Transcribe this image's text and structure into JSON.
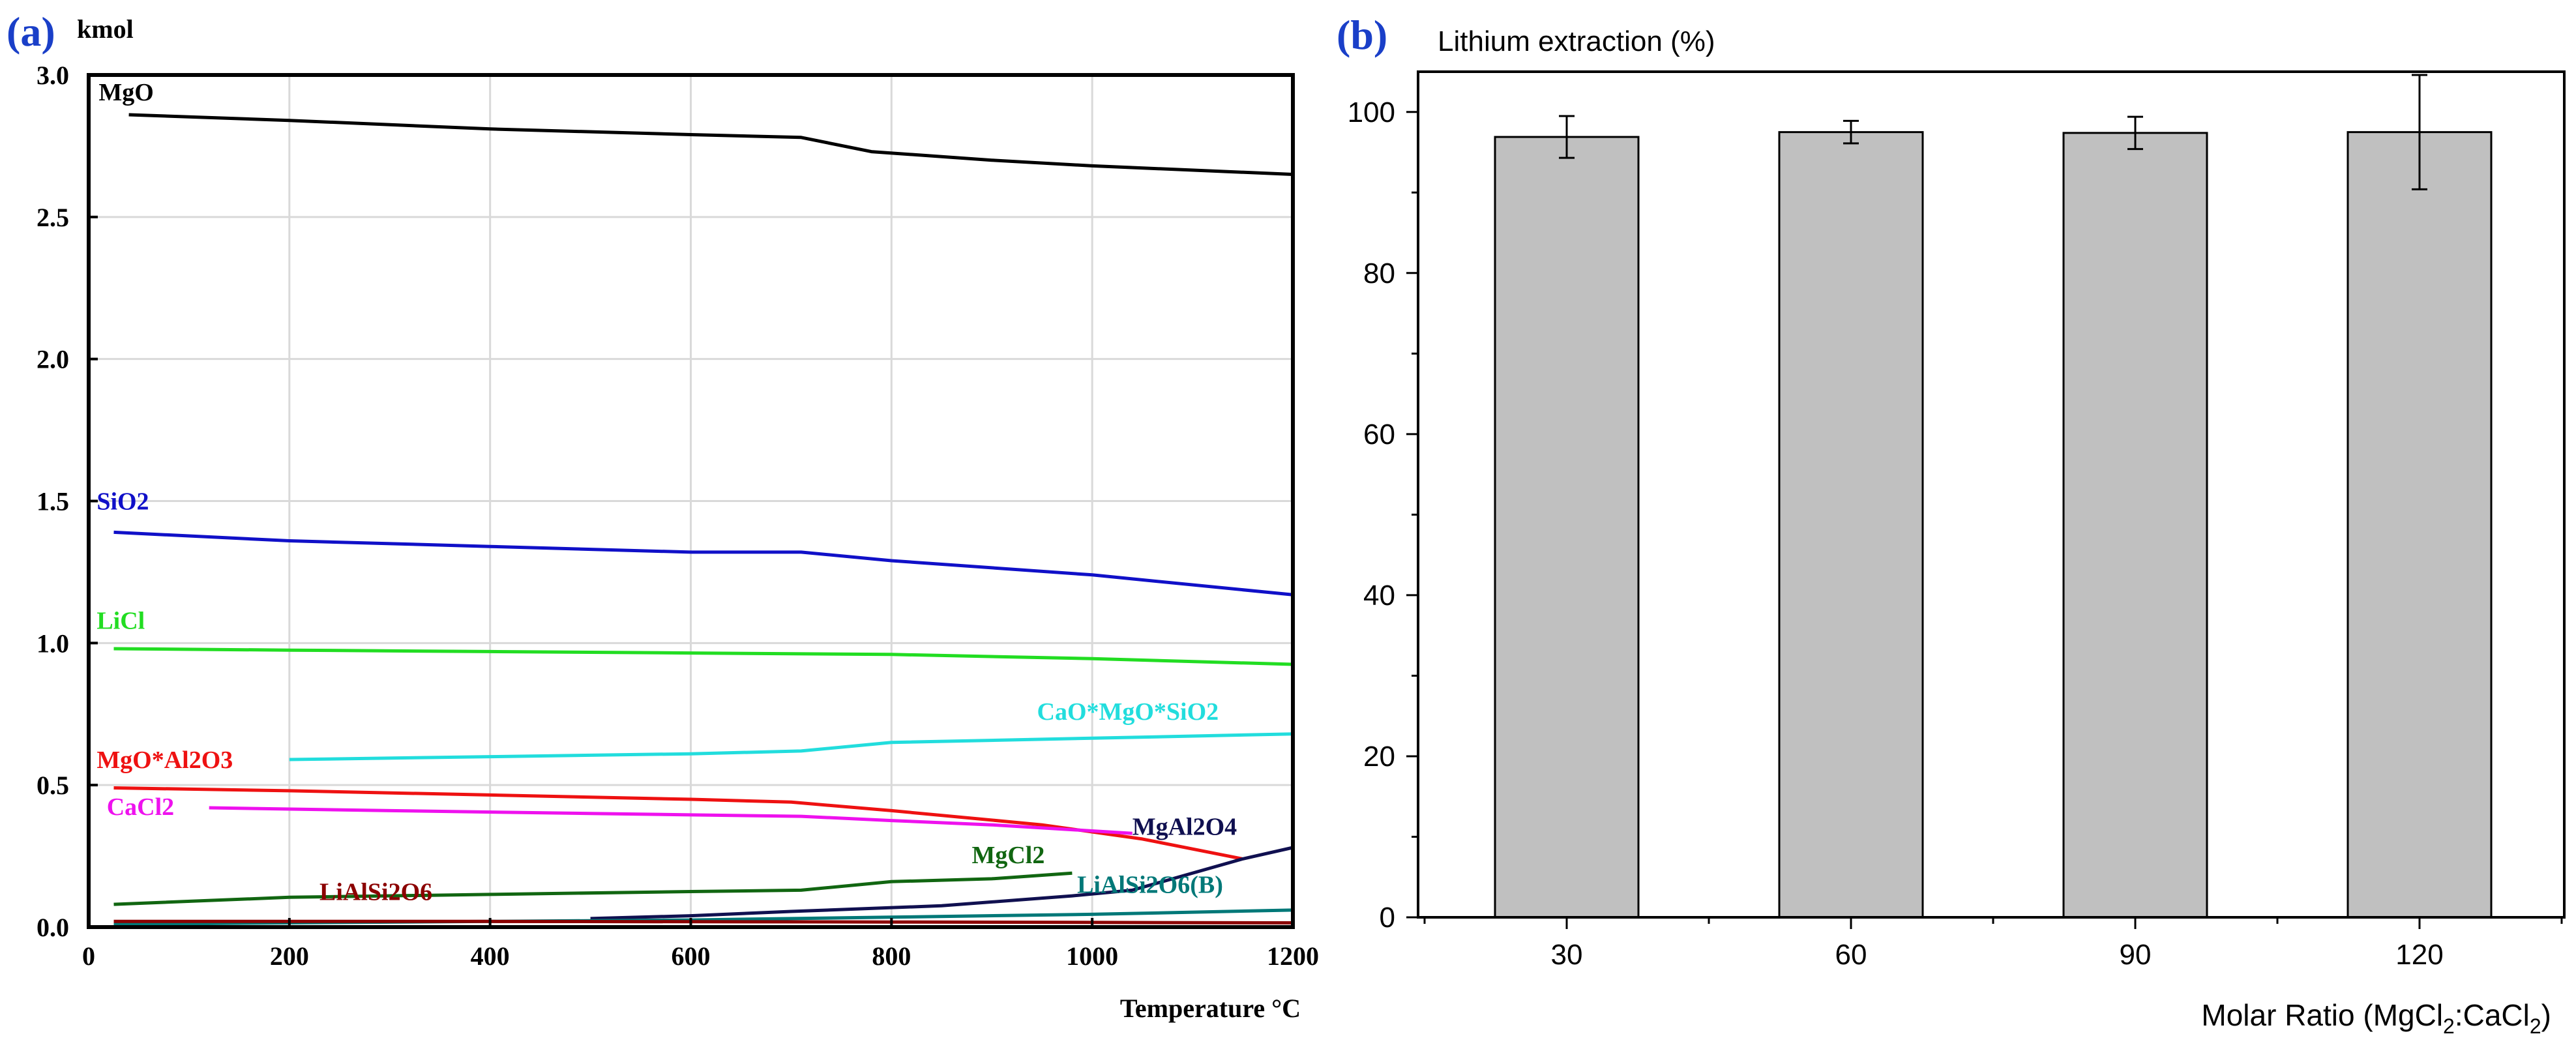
{
  "chart_data": [
    {
      "type": "line",
      "panel_label": "(a)",
      "ylabel": "kmol",
      "xlabel": "Temperature °C",
      "xlim": [
        0,
        1200
      ],
      "ylim": [
        0,
        3.0
      ],
      "x_ticks": [
        0,
        200,
        400,
        600,
        800,
        1000,
        1200
      ],
      "y_ticks": [
        0.0,
        0.5,
        1.0,
        1.5,
        2.0,
        2.5,
        3.0
      ],
      "x_tick_labels": [
        "0",
        "200",
        "400",
        "600",
        "800",
        "1000",
        "1200"
      ],
      "y_tick_labels": [
        "0.0",
        "0.5",
        "1.0",
        "1.5",
        "2.0",
        "2.5",
        "3.0"
      ],
      "grid": true,
      "series": [
        {
          "name": "MgO",
          "color": "#000000",
          "label_x": 10,
          "label_y": 2.91,
          "points": [
            [
              40,
              2.86
            ],
            [
              200,
              2.84
            ],
            [
              400,
              2.81
            ],
            [
              600,
              2.79
            ],
            [
              710,
              2.78
            ],
            [
              780,
              2.73
            ],
            [
              900,
              2.7
            ],
            [
              1000,
              2.68
            ],
            [
              1200,
              2.65
            ]
          ]
        },
        {
          "name": "SiO2",
          "color": "#1010c8",
          "label_x": 8,
          "label_y": 1.47,
          "points": [
            [
              25,
              1.39
            ],
            [
              200,
              1.36
            ],
            [
              400,
              1.34
            ],
            [
              600,
              1.32
            ],
            [
              710,
              1.32
            ],
            [
              800,
              1.29
            ],
            [
              1000,
              1.24
            ],
            [
              1200,
              1.17
            ]
          ]
        },
        {
          "name": "LiCl",
          "color": "#22dd22",
          "label_x": 8,
          "label_y": 1.05,
          "points": [
            [
              25,
              0.98
            ],
            [
              200,
              0.975
            ],
            [
              400,
              0.97
            ],
            [
              600,
              0.965
            ],
            [
              800,
              0.96
            ],
            [
              1000,
              0.945
            ],
            [
              1200,
              0.925
            ]
          ]
        },
        {
          "name": "CaO*MgO*SiO2",
          "color": "#22dddd",
          "label_x": 945,
          "label_y": 0.73,
          "points": [
            [
              200,
              0.59
            ],
            [
              400,
              0.6
            ],
            [
              600,
              0.61
            ],
            [
              710,
              0.62
            ],
            [
              800,
              0.65
            ],
            [
              1000,
              0.665
            ],
            [
              1200,
              0.68
            ]
          ]
        },
        {
          "name": "MgO*Al2O3",
          "color": "#ee1111",
          "label_x": 8,
          "label_y": 0.56,
          "points": [
            [
              25,
              0.49
            ],
            [
              200,
              0.48
            ],
            [
              400,
              0.465
            ],
            [
              600,
              0.45
            ],
            [
              700,
              0.44
            ],
            [
              800,
              0.41
            ],
            [
              950,
              0.36
            ],
            [
              1050,
              0.31
            ],
            [
              1150,
              0.24
            ]
          ]
        },
        {
          "name": "CaCl2",
          "color": "#ee11ee",
          "label_x": 18,
          "label_y": 0.395,
          "points": [
            [
              120,
              0.42
            ],
            [
              300,
              0.41
            ],
            [
              500,
              0.4
            ],
            [
              600,
              0.395
            ],
            [
              710,
              0.39
            ],
            [
              800,
              0.375
            ],
            [
              900,
              0.36
            ],
            [
              1040,
              0.33
            ]
          ]
        },
        {
          "name": "MgCl2",
          "color": "#116611",
          "label_x": 880,
          "label_y": 0.225,
          "points": [
            [
              25,
              0.08
            ],
            [
              200,
              0.105
            ],
            [
              400,
              0.115
            ],
            [
              600,
              0.125
            ],
            [
              710,
              0.13
            ],
            [
              800,
              0.16
            ],
            [
              900,
              0.17
            ],
            [
              980,
              0.19
            ]
          ]
        },
        {
          "name": "MgAl2O4",
          "color": "#101050",
          "label_x": 1040,
          "label_y": 0.325,
          "points": [
            [
              500,
              0.03
            ],
            [
              600,
              0.04
            ],
            [
              700,
              0.055
            ],
            [
              850,
              0.075
            ],
            [
              980,
              0.11
            ],
            [
              1040,
              0.13
            ],
            [
              1150,
              0.24
            ],
            [
              1200,
              0.28
            ]
          ]
        },
        {
          "name": "LiAlSi2O6(B)",
          "color": "#007878",
          "label_x": 985,
          "label_y": 0.12,
          "points": [
            [
              25,
              0.01
            ],
            [
              200,
              0.015
            ],
            [
              400,
              0.02
            ],
            [
              600,
              0.025
            ],
            [
              800,
              0.035
            ],
            [
              1000,
              0.045
            ],
            [
              1200,
              0.06
            ]
          ]
        },
        {
          "name": "LiAlSi2O6",
          "color": "#8b0000",
          "label_x": 230,
          "label_y": 0.095,
          "points": [
            [
              25,
              0.02
            ],
            [
              400,
              0.02
            ],
            [
              800,
              0.018
            ],
            [
              1200,
              0.015
            ]
          ]
        }
      ]
    },
    {
      "type": "bar",
      "panel_label": "(b)",
      "title": "Lithium extraction (%)",
      "xlabel": "Molar Ratio (MgCl",
      "xlabel_sub1": "2",
      "xlabel_mid": ":CaCl",
      "xlabel_sub2": "2",
      "xlabel_end": ")",
      "categories": [
        "30",
        "60",
        "90",
        "120"
      ],
      "values": [
        96.9,
        97.5,
        97.4,
        97.5
      ],
      "errors": [
        2.6,
        1.4,
        2.0,
        7.1
      ],
      "ylim": [
        0,
        105
      ],
      "y_ticks": [
        0,
        20,
        40,
        60,
        80,
        100
      ],
      "y_tick_labels": [
        "0",
        "20",
        "40",
        "60",
        "80",
        "100"
      ],
      "grid": false,
      "bar_color": "#c0c0c0"
    }
  ]
}
